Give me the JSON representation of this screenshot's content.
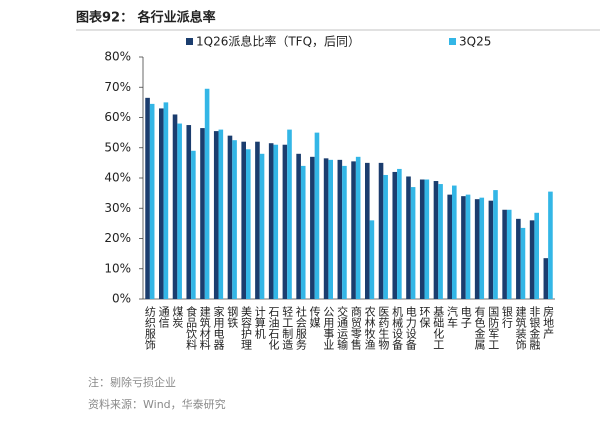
{
  "chart_data": {
    "type": "bar",
    "title": "图表92： 各行业派息率",
    "categories": [
      "纺织服饰",
      "通信",
      "煤炭",
      "食品饮料",
      "建筑材料",
      "家用电器",
      "钢铁",
      "美容护理",
      "计算机",
      "石油石化",
      "轻工制造",
      "社会服务",
      "传媒",
      "公用事业",
      "交通运输",
      "商贸零售",
      "农林牧渔",
      "医药生物",
      "机械设备",
      "电力设备",
      "环保",
      "基础化工",
      "汽车",
      "电子",
      "有色金属",
      "国防军工",
      "银行",
      "建筑装饰",
      "非银金融",
      "房地产"
    ],
    "series": [
      {
        "name": "1Q26派息比率（TFQ，后同）",
        "color": "#1b3d6e",
        "values": [
          66.5,
          63,
          61,
          57.5,
          56.5,
          55.5,
          54,
          52,
          52,
          51.5,
          51,
          48,
          47,
          46.5,
          46,
          45.5,
          45,
          45,
          42,
          40.5,
          39.5,
          39,
          34.5,
          34,
          33,
          32.5,
          29.5,
          26.5,
          26,
          13.5
        ]
      },
      {
        "name": "3Q25",
        "color": "#33b6e6",
        "values": [
          64.5,
          65,
          58,
          49,
          69.5,
          56,
          52.5,
          49.5,
          48,
          51,
          56,
          44,
          55,
          46,
          44,
          47,
          26,
          41,
          43,
          37,
          39.5,
          38,
          37.5,
          34.5,
          33.5,
          36,
          29.5,
          23.5,
          28.5,
          35.5
        ]
      }
    ],
    "ylim": [
      0,
      80
    ],
    "yticks": [
      {
        "value": 0,
        "label": "0%"
      },
      {
        "value": 10,
        "label": "10%"
      },
      {
        "value": 20,
        "label": "20%"
      },
      {
        "value": 30,
        "label": "30%"
      },
      {
        "value": 40,
        "label": "40%"
      },
      {
        "value": 50,
        "label": "50%"
      },
      {
        "value": 60,
        "label": "60%"
      },
      {
        "value": 70,
        "label": "70%"
      },
      {
        "value": 80,
        "label": "80%"
      }
    ],
    "notes": [
      "注：剔除亏损企业",
      "资料来源：Wind，华泰研究"
    ]
  }
}
